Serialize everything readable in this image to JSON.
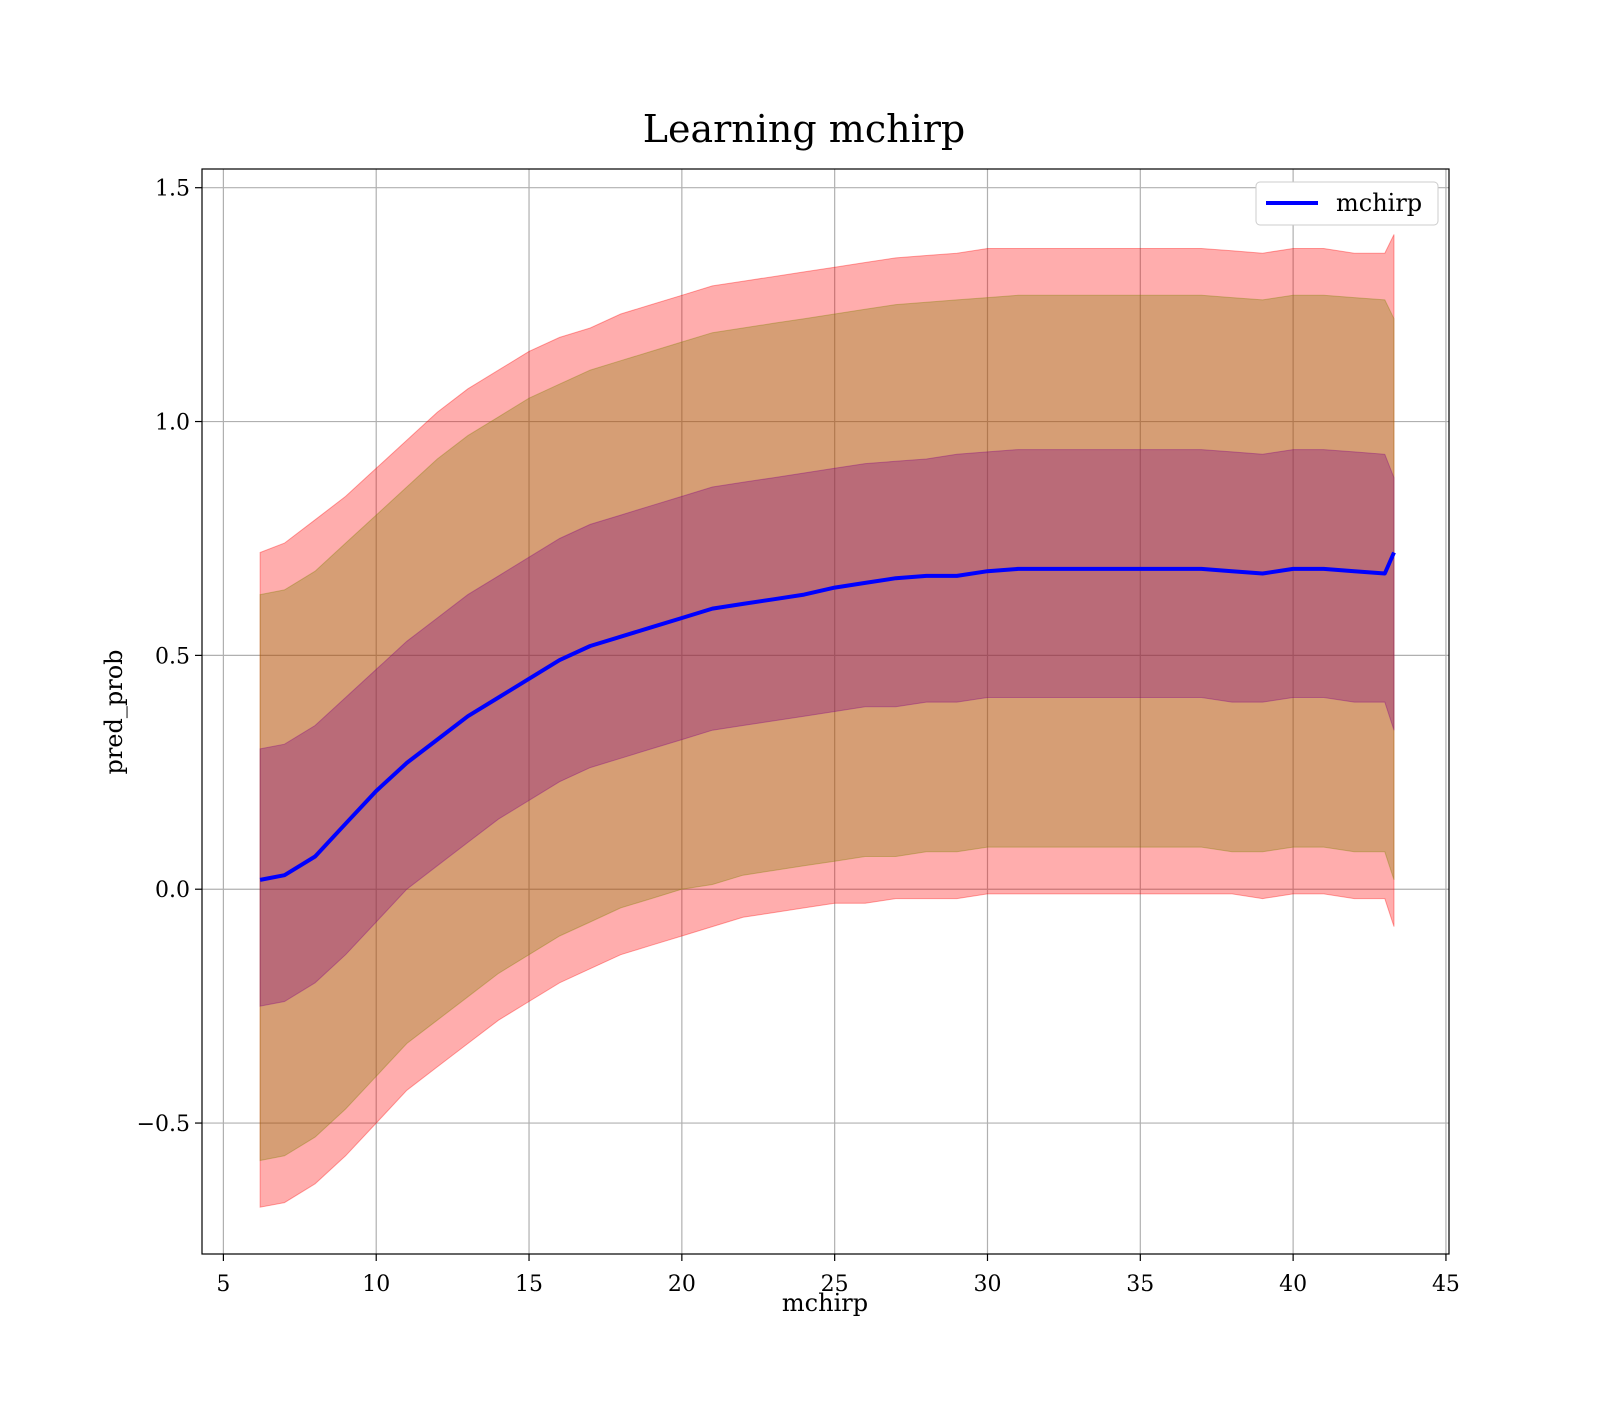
{
  "chart_data": {
    "type": "line",
    "title": "Learning mchirp",
    "xlabel": "mchirp",
    "ylabel": "pred_prob",
    "xlim": [
      4.3,
      45.1
    ],
    "ylim": [
      -0.78,
      1.54
    ],
    "grid": true,
    "legend": {
      "placement": "top-right",
      "entries": [
        "mchirp"
      ]
    },
    "x_ticks": [
      5,
      10,
      15,
      20,
      25,
      30,
      35,
      40,
      45
    ],
    "x_tick_labels": [
      "5",
      "10",
      "15",
      "20",
      "25",
      "30",
      "35",
      "40",
      "45"
    ],
    "y_ticks": [
      -0.5,
      0.0,
      0.5,
      1.0,
      1.5
    ],
    "y_tick_labels": [
      "−0.5",
      "0.0",
      "0.5",
      "1.0",
      "1.5"
    ],
    "colors": {
      "line": "#0000ff",
      "band_outer": "#ff0000",
      "band_middle": "#808000",
      "band_inner": "#800080",
      "grid": "#b0b0b0"
    },
    "band_opacities": {
      "outer": 0.32,
      "middle": 0.32,
      "inner": 0.32
    },
    "series": [
      {
        "name": "mchirp",
        "x": [
          6.2,
          7,
          8,
          9,
          10,
          11,
          12,
          13,
          14,
          15,
          16,
          17,
          18,
          19,
          20,
          21,
          22,
          23,
          24,
          25,
          26,
          27,
          28,
          29,
          30,
          31,
          32,
          33,
          34,
          35,
          36,
          37,
          38,
          39,
          40,
          41,
          42,
          43,
          43.3
        ],
        "y": [
          0.02,
          0.03,
          0.07,
          0.14,
          0.21,
          0.27,
          0.32,
          0.37,
          0.41,
          0.45,
          0.49,
          0.52,
          0.54,
          0.56,
          0.58,
          0.6,
          0.61,
          0.62,
          0.63,
          0.645,
          0.655,
          0.665,
          0.67,
          0.67,
          0.68,
          0.685,
          0.685,
          0.685,
          0.685,
          0.685,
          0.685,
          0.685,
          0.68,
          0.675,
          0.685,
          0.685,
          0.68,
          0.675,
          0.72
        ]
      }
    ],
    "bands": [
      {
        "name": "outer",
        "x": [
          6.2,
          7,
          8,
          9,
          10,
          11,
          12,
          13,
          14,
          15,
          16,
          17,
          18,
          19,
          20,
          21,
          22,
          23,
          24,
          25,
          26,
          27,
          28,
          29,
          30,
          31,
          32,
          33,
          34,
          35,
          36,
          37,
          38,
          39,
          40,
          41,
          42,
          43,
          43.3
        ],
        "upper": [
          0.72,
          0.74,
          0.79,
          0.84,
          0.9,
          0.96,
          1.02,
          1.07,
          1.11,
          1.15,
          1.18,
          1.2,
          1.23,
          1.25,
          1.27,
          1.29,
          1.3,
          1.31,
          1.32,
          1.33,
          1.34,
          1.35,
          1.355,
          1.36,
          1.37,
          1.37,
          1.37,
          1.37,
          1.37,
          1.37,
          1.37,
          1.37,
          1.365,
          1.36,
          1.37,
          1.37,
          1.36,
          1.36,
          1.4
        ],
        "lower": [
          -0.68,
          -0.67,
          -0.63,
          -0.57,
          -0.5,
          -0.43,
          -0.38,
          -0.33,
          -0.28,
          -0.24,
          -0.2,
          -0.17,
          -0.14,
          -0.12,
          -0.1,
          -0.08,
          -0.06,
          -0.05,
          -0.04,
          -0.03,
          -0.03,
          -0.02,
          -0.02,
          -0.02,
          -0.01,
          -0.01,
          -0.01,
          -0.01,
          -0.01,
          -0.01,
          -0.01,
          -0.01,
          -0.01,
          -0.02,
          -0.01,
          -0.01,
          -0.02,
          -0.02,
          -0.08
        ]
      },
      {
        "name": "middle",
        "x": [
          6.2,
          7,
          8,
          9,
          10,
          11,
          12,
          13,
          14,
          15,
          16,
          17,
          18,
          19,
          20,
          21,
          22,
          23,
          24,
          25,
          26,
          27,
          28,
          29,
          30,
          31,
          32,
          33,
          34,
          35,
          36,
          37,
          38,
          39,
          40,
          41,
          42,
          43,
          43.3
        ],
        "upper": [
          0.63,
          0.64,
          0.68,
          0.74,
          0.8,
          0.86,
          0.92,
          0.97,
          1.01,
          1.05,
          1.08,
          1.11,
          1.13,
          1.15,
          1.17,
          1.19,
          1.2,
          1.21,
          1.22,
          1.23,
          1.24,
          1.25,
          1.255,
          1.26,
          1.265,
          1.27,
          1.27,
          1.27,
          1.27,
          1.27,
          1.27,
          1.27,
          1.265,
          1.26,
          1.27,
          1.27,
          1.265,
          1.26,
          1.22
        ],
        "lower": [
          -0.58,
          -0.57,
          -0.53,
          -0.47,
          -0.4,
          -0.33,
          -0.28,
          -0.23,
          -0.18,
          -0.14,
          -0.1,
          -0.07,
          -0.04,
          -0.02,
          0.0,
          0.01,
          0.03,
          0.04,
          0.05,
          0.06,
          0.07,
          0.07,
          0.08,
          0.08,
          0.09,
          0.09,
          0.09,
          0.09,
          0.09,
          0.09,
          0.09,
          0.09,
          0.08,
          0.08,
          0.09,
          0.09,
          0.08,
          0.08,
          0.02
        ]
      },
      {
        "name": "inner",
        "x": [
          6.2,
          7,
          8,
          9,
          10,
          11,
          12,
          13,
          14,
          15,
          16,
          17,
          18,
          19,
          20,
          21,
          22,
          23,
          24,
          25,
          26,
          27,
          28,
          29,
          30,
          31,
          32,
          33,
          34,
          35,
          36,
          37,
          38,
          39,
          40,
          41,
          42,
          43,
          43.3
        ],
        "upper": [
          0.3,
          0.31,
          0.35,
          0.41,
          0.47,
          0.53,
          0.58,
          0.63,
          0.67,
          0.71,
          0.75,
          0.78,
          0.8,
          0.82,
          0.84,
          0.86,
          0.87,
          0.88,
          0.89,
          0.9,
          0.91,
          0.915,
          0.92,
          0.93,
          0.935,
          0.94,
          0.94,
          0.94,
          0.94,
          0.94,
          0.94,
          0.94,
          0.935,
          0.93,
          0.94,
          0.94,
          0.935,
          0.93,
          0.88
        ],
        "lower": [
          -0.25,
          -0.24,
          -0.2,
          -0.14,
          -0.07,
          0.0,
          0.05,
          0.1,
          0.15,
          0.19,
          0.23,
          0.26,
          0.28,
          0.3,
          0.32,
          0.34,
          0.35,
          0.36,
          0.37,
          0.38,
          0.39,
          0.39,
          0.4,
          0.4,
          0.41,
          0.41,
          0.41,
          0.41,
          0.41,
          0.41,
          0.41,
          0.41,
          0.4,
          0.4,
          0.41,
          0.41,
          0.4,
          0.4,
          0.34
        ]
      }
    ]
  }
}
